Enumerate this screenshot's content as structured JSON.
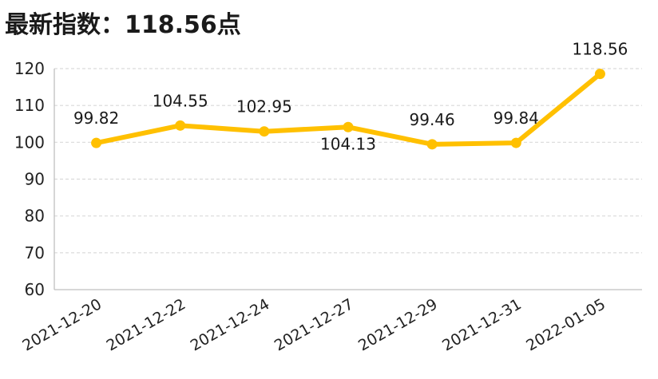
{
  "chart_data": {
    "type": "line",
    "title": "最新指数：118.56点",
    "xlabel": "",
    "ylabel": "",
    "categories": [
      "2021-12-20",
      "2021-12-22",
      "2021-12-24",
      "2021-12-27",
      "2021-12-29",
      "2021-12-31",
      "2022-01-05"
    ],
    "series": [
      {
        "values": [
          99.82,
          104.55,
          102.95,
          104.13,
          99.46,
          99.84,
          118.56
        ],
        "data_labels": [
          "99.82",
          "104.55",
          "102.95",
          "104.13",
          "99.46",
          "99.84",
          "118.56"
        ],
        "label_positions": [
          "above",
          "above",
          "above",
          "below",
          "above",
          "above",
          "above"
        ]
      }
    ],
    "ylim": [
      60,
      120
    ],
    "yticks": [
      60,
      70,
      80,
      90,
      100,
      110,
      120
    ],
    "grid": true,
    "legend": "none",
    "colors": {
      "line": "#FFC000",
      "grid": "#d9d9d9",
      "axis": "#bfbfbf"
    }
  }
}
